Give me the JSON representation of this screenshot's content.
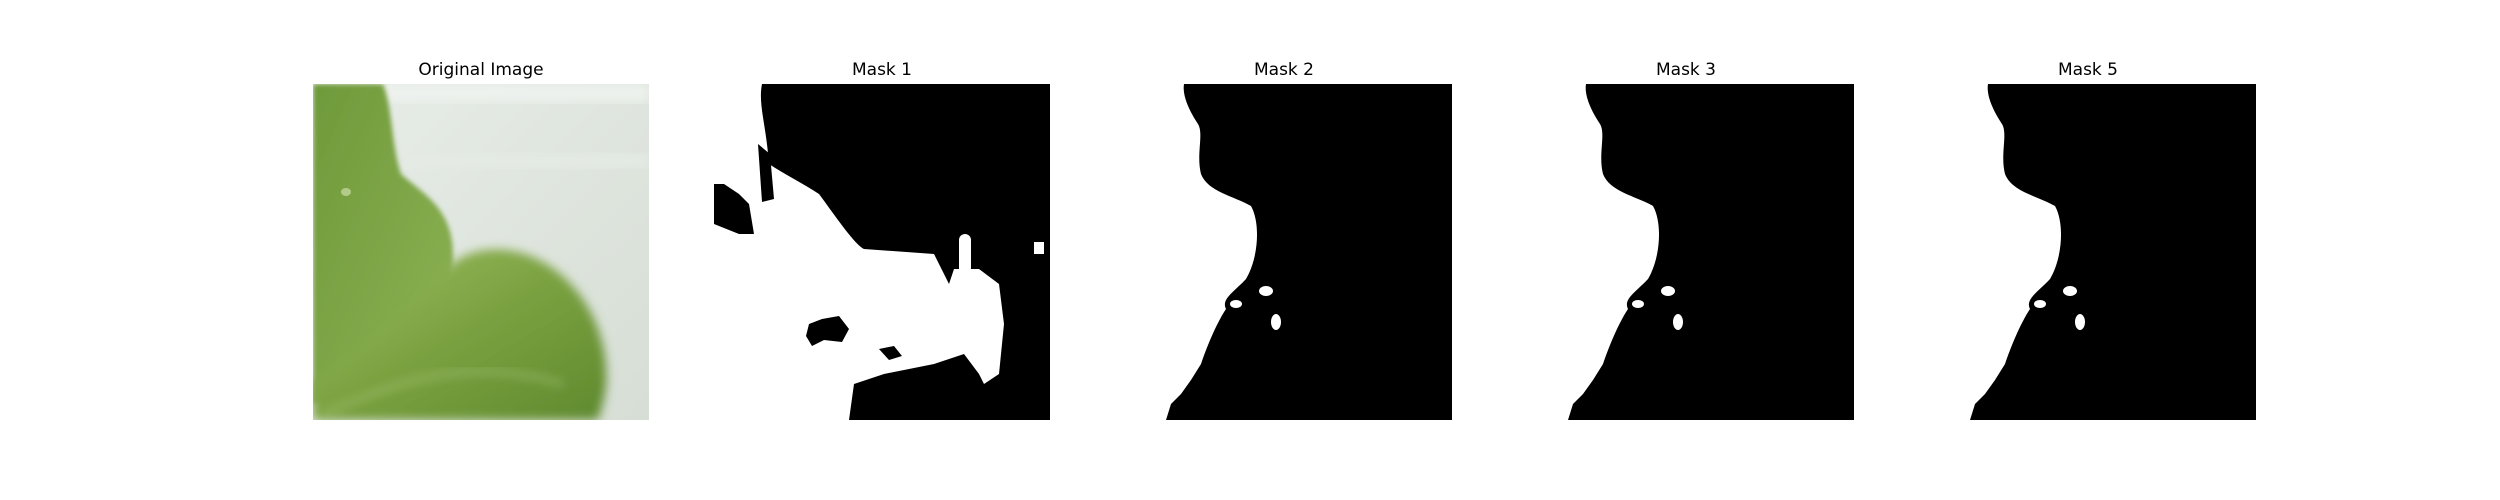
{
  "figure": {
    "panels": [
      {
        "title": "Original Image",
        "kind": "photo-leaf"
      },
      {
        "title": "Mask 1",
        "kind": "mask"
      },
      {
        "title": "Mask 2",
        "kind": "mask"
      },
      {
        "title": "Mask 3",
        "kind": "mask"
      },
      {
        "title": "Mask 5",
        "kind": "mask"
      }
    ]
  },
  "colors": {
    "background": "#ffffff",
    "mask_foreground": "#ffffff",
    "mask_background": "#000000",
    "leaf_light": "#8fb04e",
    "leaf_dark": "#5f8a2e",
    "photo_background": "#dfe6df"
  }
}
